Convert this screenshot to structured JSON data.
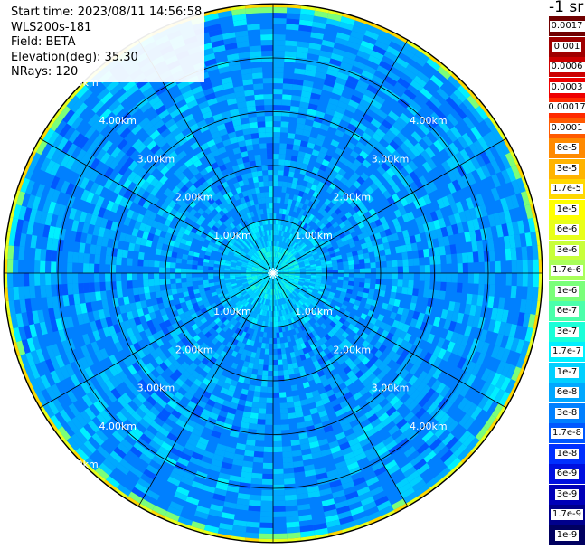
{
  "header": {
    "start_time": "Start time: 2023/08/11 14:56:58",
    "instrument": "WLS200s-181",
    "field": "Field: BETA",
    "elevation": "Elevation(deg): 35.30",
    "nrays": "NRays: 120"
  },
  "scale": {
    "units_title": "-1 sr",
    "levels": [
      {
        "label": "0.0017",
        "color": "#700000"
      },
      {
        "label": "0.001",
        "color": "#a00000"
      },
      {
        "label": "0.0006",
        "color": "#cc0000"
      },
      {
        "label": "0.0003",
        "color": "#ee0000"
      },
      {
        "label": "0.00017",
        "color": "#ff2a00"
      },
      {
        "label": "0.0001",
        "color": "#ff5a00"
      },
      {
        "label": "6e-5",
        "color": "#ff8a00"
      },
      {
        "label": "3e-5",
        "color": "#ffb400"
      },
      {
        "label": "1.7e-5",
        "color": "#ffd800"
      },
      {
        "label": "1e-5",
        "color": "#ffff00"
      },
      {
        "label": "6e-6",
        "color": "#e8ff1a"
      },
      {
        "label": "3e-6",
        "color": "#c8ff3a"
      },
      {
        "label": "1.7e-6",
        "color": "#a8ff5a"
      },
      {
        "label": "1e-6",
        "color": "#7aff7a"
      },
      {
        "label": "6e-7",
        "color": "#4affaa"
      },
      {
        "label": "3e-7",
        "color": "#1affd8"
      },
      {
        "label": "1.7e-7",
        "color": "#00f0ff"
      },
      {
        "label": "1e-7",
        "color": "#00d0ff"
      },
      {
        "label": "6e-8",
        "color": "#00a8ff"
      },
      {
        "label": "3e-8",
        "color": "#0080ff"
      },
      {
        "label": "1.7e-8",
        "color": "#0058ff"
      },
      {
        "label": "1e-8",
        "color": "#0030ff"
      },
      {
        "label": "6e-9",
        "color": "#0010e0"
      },
      {
        "label": "3e-9",
        "color": "#0000b8"
      },
      {
        "label": "1.7e-9",
        "color": "#00008c"
      },
      {
        "label": "1e-9",
        "color": "#000060"
      }
    ]
  },
  "range_rings": {
    "labels": [
      "1.00km",
      "2.00km",
      "3.00km",
      "4.00km",
      "5.00km"
    ]
  },
  "ppi": {
    "spoke_bearings_deg": [
      0,
      30,
      60,
      90,
      120,
      150,
      180,
      210,
      240,
      270,
      300,
      330
    ]
  }
}
